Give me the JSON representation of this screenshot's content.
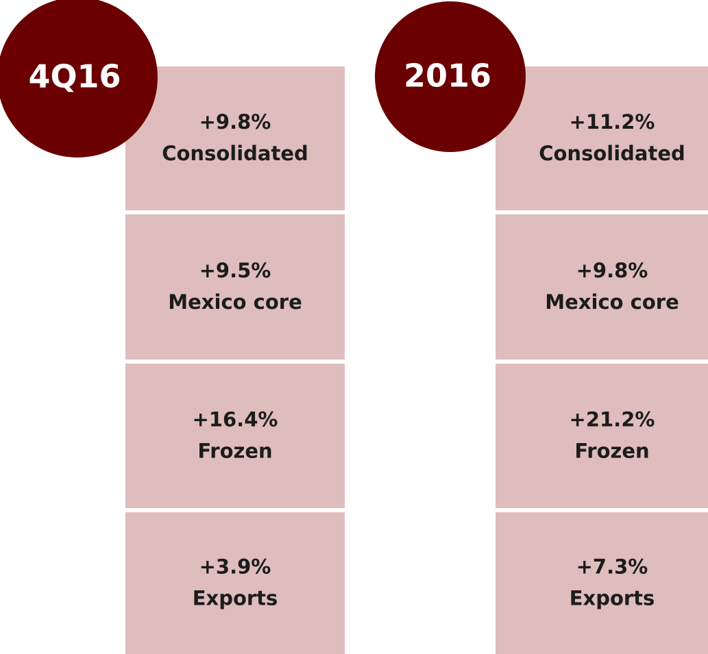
{
  "panels": [
    {
      "period": "4Q16",
      "items": [
        {
          "value": "+9.8%",
          "label": "Consolidated"
        },
        {
          "value": "+9.5%",
          "label": "Mexico core"
        },
        {
          "value": "+16.4%",
          "label": "Frozen"
        },
        {
          "value": "+3.9%",
          "label": "Exports"
        }
      ]
    },
    {
      "period": "2016",
      "items": [
        {
          "value": "+11.2%",
          "label": "Consolidated"
        },
        {
          "value": "+9.8%",
          "label": "Mexico core"
        },
        {
          "value": "+21.2%",
          "label": "Frozen"
        },
        {
          "value": "+7.3%",
          "label": "Exports"
        }
      ]
    }
  ]
}
